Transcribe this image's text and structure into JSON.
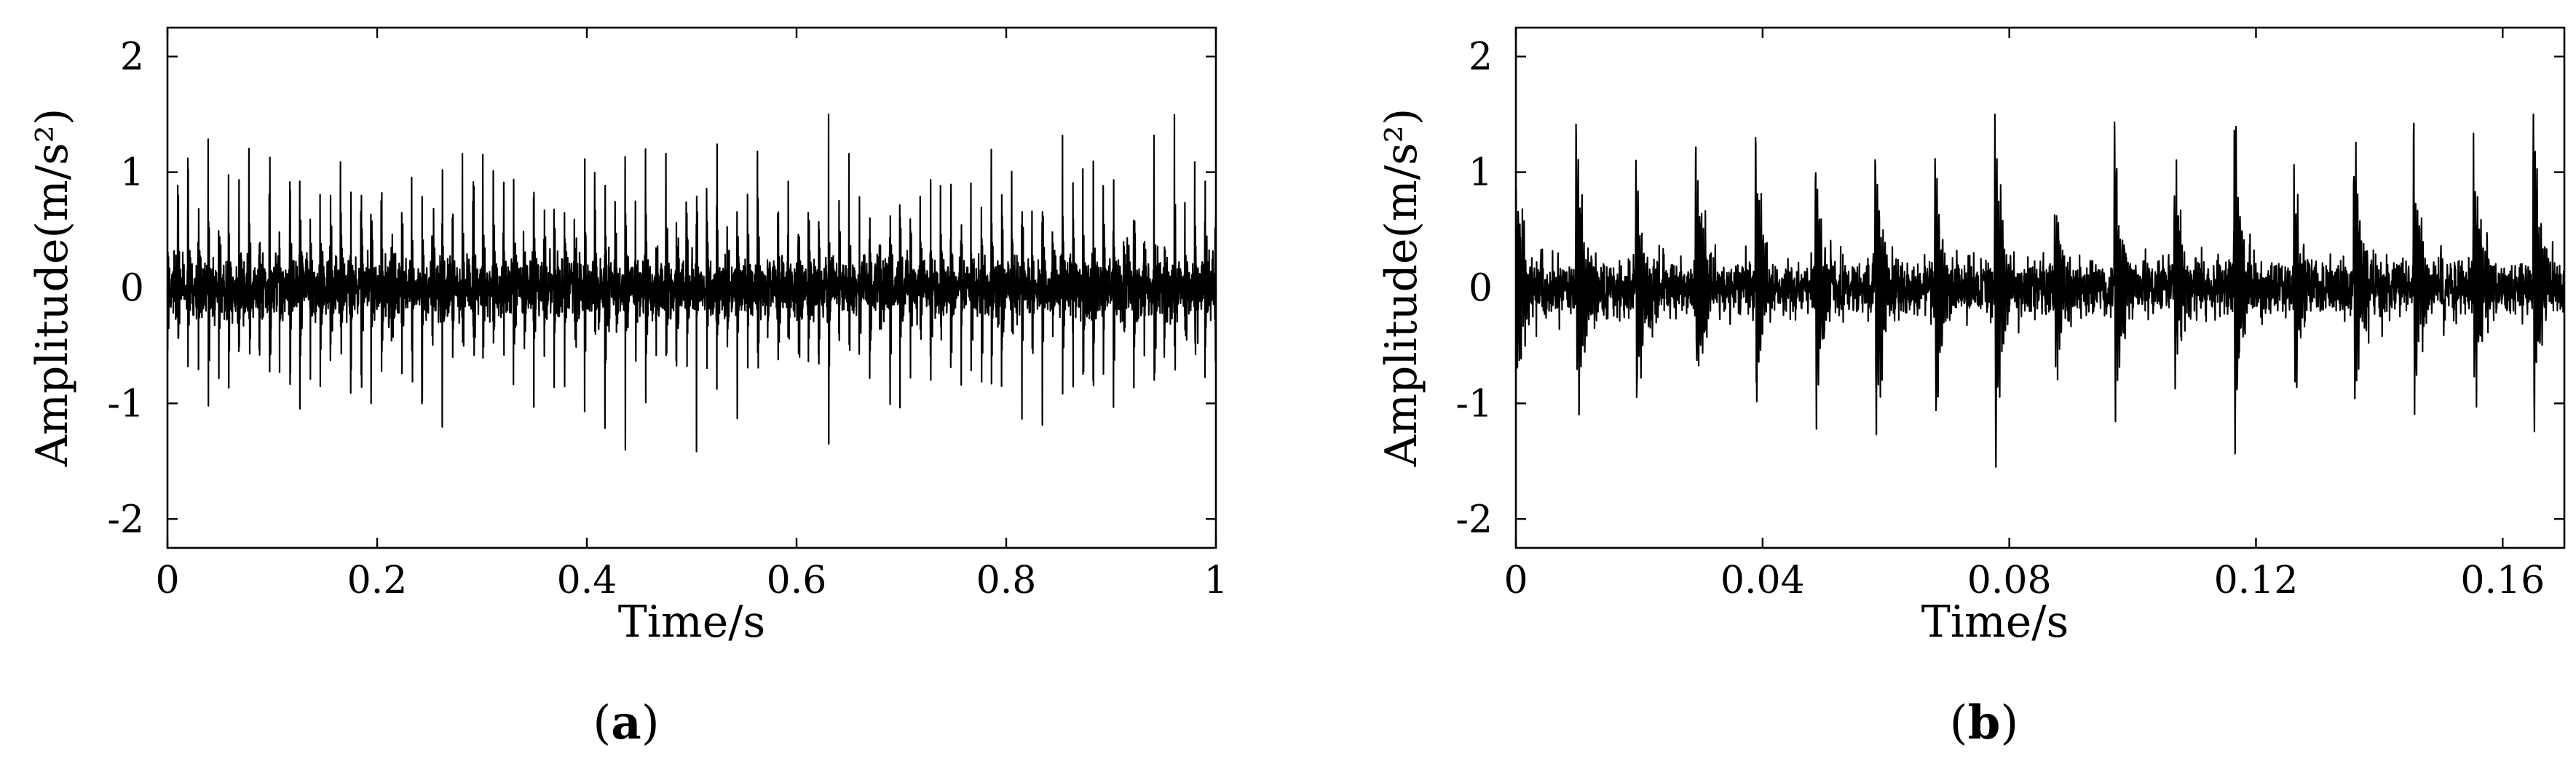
{
  "chart_data": [
    {
      "type": "line",
      "panel_label": "(a)",
      "panel_letter": "a",
      "xlabel": "Time/s",
      "ylabel": "Amplitude(m/s²)",
      "xlim": [
        0,
        1
      ],
      "ylim": [
        -2.25,
        2.25
      ],
      "x_ticks": [
        0,
        0.2,
        0.4,
        0.6,
        0.8,
        1
      ],
      "x_tick_labels": [
        "0",
        "0.2",
        "0.4",
        "0.6",
        "0.8",
        "1"
      ],
      "y_ticks": [
        -2,
        -1,
        0,
        1,
        2
      ],
      "y_tick_labels": [
        "-2",
        "-1",
        "0",
        "1",
        "2"
      ],
      "grid": false,
      "legend": "none",
      "signal_color": "#000000",
      "series": [
        {
          "kind": "vibration-signal",
          "peak_max": 1.5,
          "peak_min": -1.55,
          "impulse_period_s": 0.0097
        }
      ]
    },
    {
      "type": "line",
      "panel_label": "(b)",
      "panel_letter": "b",
      "xlabel": "Time/s",
      "ylabel": "Amplitude(m/s²)",
      "xlim": [
        0,
        0.17
      ],
      "ylim": [
        -2.25,
        2.25
      ],
      "x_ticks": [
        0,
        0.04,
        0.08,
        0.12,
        0.16
      ],
      "x_tick_labels": [
        "0",
        "0.04",
        "0.08",
        "0.12",
        "0.16"
      ],
      "y_ticks": [
        -2,
        -1,
        0,
        1,
        2
      ],
      "y_tick_labels": [
        "-2",
        "-1",
        "0",
        "1",
        "2"
      ],
      "grid": false,
      "legend": "none",
      "signal_color": "#000000",
      "series": [
        {
          "kind": "vibration-signal",
          "peak_max": 1.5,
          "peak_min": -1.55,
          "impulse_period_s": 0.0097
        }
      ]
    }
  ]
}
